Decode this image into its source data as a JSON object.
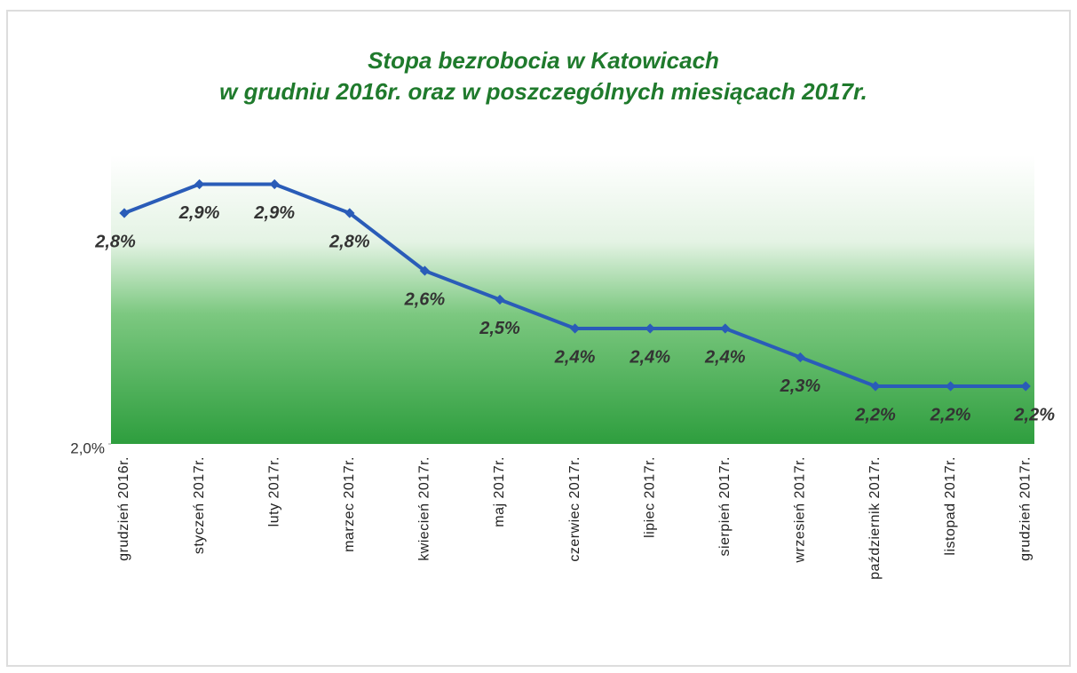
{
  "chart_data": {
    "type": "line",
    "title": [
      "Stopa bezrobocia w Katowicach",
      "w grudniu 2016r. oraz w poszczególnych miesiącach 2017r."
    ],
    "categories": [
      "grudzień 2016r.",
      "styczeń 2017r.",
      "luty 2017r.",
      "marzec 2017r.",
      "kwiecień 2017r.",
      "maj 2017r.",
      "czerwiec 2017r.",
      "lipiec 2017r.",
      "sierpień 2017r.",
      "wrzesień 2017r.",
      "październik 2017r.",
      "listopad 2017r.",
      "grudzień 2017r."
    ],
    "values": [
      2.8,
      2.9,
      2.9,
      2.8,
      2.6,
      2.5,
      2.4,
      2.4,
      2.4,
      2.3,
      2.2,
      2.2,
      2.2
    ],
    "value_labels": [
      "2,8%",
      "2,9%",
      "2,9%",
      "2,8%",
      "2,6%",
      "2,5%",
      "2,4%",
      "2,4%",
      "2,4%",
      "2,3%",
      "2,2%",
      "2,2%",
      "2,2%"
    ],
    "color": "#2a5cb8",
    "ylim": [
      2.0,
      3.0
    ],
    "yticks": [
      {
        "value": 2.0,
        "label": "2,0%"
      }
    ]
  }
}
